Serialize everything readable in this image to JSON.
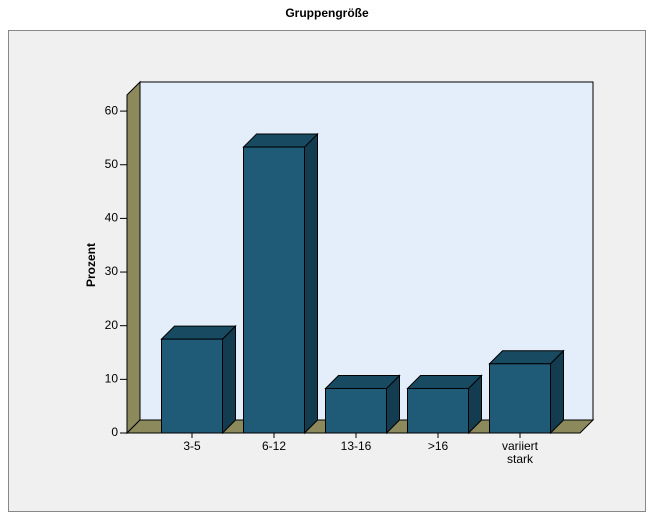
{
  "chart_data": {
    "type": "bar3d",
    "title": "Gruppengröße",
    "y_label": "Prozent",
    "categories": [
      "3-5",
      "6-12",
      "13-16",
      ">16",
      "variiert stark"
    ],
    "values": [
      17.5,
      53.3,
      8.3,
      8.3,
      12.9
    ],
    "color": "#1f5a76",
    "ylim": [
      0,
      63
    ],
    "yticks": [
      0,
      10,
      20,
      30,
      40,
      50,
      60
    ]
  }
}
